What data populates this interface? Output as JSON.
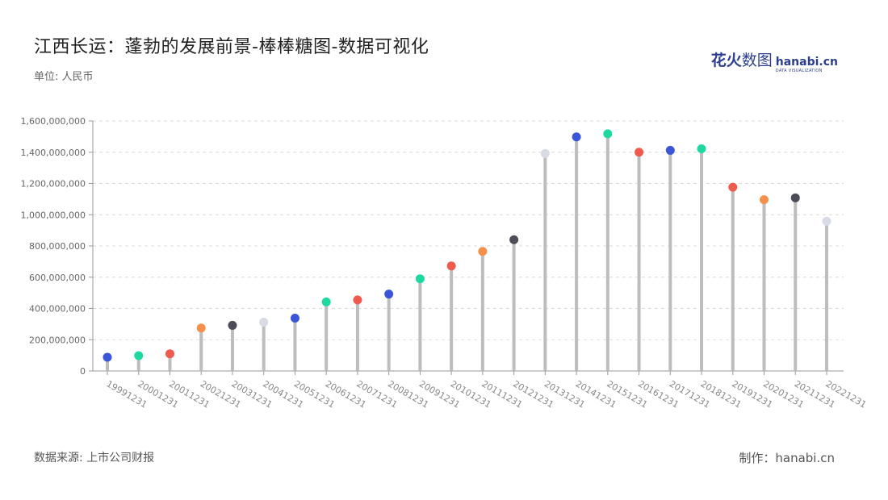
{
  "title": "江西长运：蓬勃的发展前景-棒棒糖图-数据可视化",
  "unit_label": "单位: 人民币",
  "logo": {
    "cn_a": "花火",
    "cn_b": "数图",
    "en": "hanabi.cn",
    "tagline": "DATA VISUALIZATION"
  },
  "source_label": "数据来源: 上市公司财报",
  "maker_label": "制作：hanabi.cn",
  "chart_data": {
    "type": "lollipop",
    "categories": [
      "19991231",
      "20001231",
      "20011231",
      "20021231",
      "20031231",
      "20041231",
      "20051231",
      "20061231",
      "20071231",
      "20081231",
      "20091231",
      "20101231",
      "20111231",
      "20121231",
      "20131231",
      "20141231",
      "20151231",
      "20161231",
      "20171231",
      "20181231",
      "20191231",
      "20201231",
      "20211231",
      "20221231"
    ],
    "values": [
      88000000,
      98000000,
      110000000,
      275000000,
      292000000,
      312000000,
      338000000,
      442000000,
      455000000,
      492000000,
      590000000,
      672000000,
      765000000,
      840000000,
      1392000000,
      1498000000,
      1518000000,
      1400000000,
      1412000000,
      1422000000,
      1176000000,
      1096000000,
      1108000000,
      958000000
    ],
    "colors": [
      "#3b55d9",
      "#1dd9a0",
      "#ef5a4e",
      "#f4904a",
      "#4d4d59",
      "#d8dae6",
      "#3b55d9",
      "#1dd9a0",
      "#ef5a4e",
      "#3b55d9",
      "#1dd9a0",
      "#ef5a4e",
      "#f4904a",
      "#4d4d59",
      "#d8dae6",
      "#3b55d9",
      "#1dd9a0",
      "#ef5a4e",
      "#3b55d9",
      "#1dd9a0",
      "#ef5a4e",
      "#f4904a",
      "#4d4d59",
      "#d8dae6"
    ],
    "stem_color": "#bdbdbd",
    "ylim": [
      0,
      1600000000
    ],
    "yticks": [
      0,
      200000000,
      400000000,
      600000000,
      800000000,
      1000000000,
      1200000000,
      1400000000,
      1600000000
    ],
    "ytick_labels": [
      "0",
      "200,000,000",
      "400,000,000",
      "600,000,000",
      "800,000,000",
      "1,000,000,000",
      "1,200,000,000",
      "1,400,000,000",
      "1,600,000,000"
    ],
    "grid": true,
    "xlabel": "",
    "ylabel": ""
  }
}
